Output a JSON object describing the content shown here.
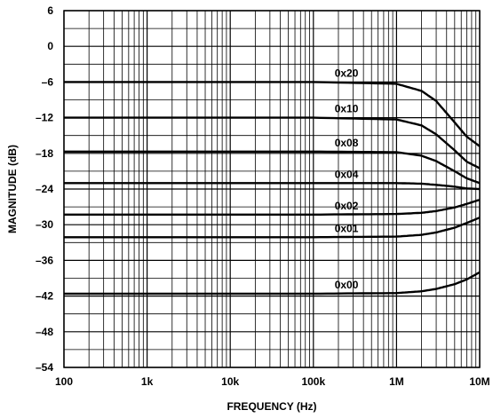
{
  "chart_data": {
    "type": "line",
    "title": "",
    "xlabel": "FREQUENCY (Hz)",
    "ylabel": "MAGNITUDE (dB)",
    "x_scale": "log",
    "xlim": [
      100,
      10000000
    ],
    "ylim": [
      -54,
      6
    ],
    "grid": true,
    "x_ticks": [
      {
        "value": 100,
        "label": "100"
      },
      {
        "value": 1000,
        "label": "1k"
      },
      {
        "value": 10000,
        "label": "10k"
      },
      {
        "value": 100000,
        "label": "100k"
      },
      {
        "value": 1000000,
        "label": "1M"
      },
      {
        "value": 10000000,
        "label": "10M"
      }
    ],
    "y_ticks": [
      {
        "value": 6,
        "label": "6"
      },
      {
        "value": 0,
        "label": "0"
      },
      {
        "value": -6,
        "label": "–6"
      },
      {
        "value": -12,
        "label": "–12"
      },
      {
        "value": -18,
        "label": "–18"
      },
      {
        "value": -24,
        "label": "–24"
      },
      {
        "value": -30,
        "label": "–30"
      },
      {
        "value": -36,
        "label": "–36"
      },
      {
        "value": -42,
        "label": "–42"
      },
      {
        "value": -48,
        "label": "–48"
      },
      {
        "value": -54,
        "label": "–54"
      }
    ],
    "series": [
      {
        "name": "0x20",
        "x": [
          100,
          100000,
          1000000,
          2000000,
          3000000,
          5000000,
          7000000,
          10000000
        ],
        "y": [
          -6.0,
          -6.0,
          -6.3,
          -7.5,
          -9.2,
          -12.8,
          -15.2,
          -16.8
        ]
      },
      {
        "name": "0x10",
        "x": [
          100,
          100000,
          1000000,
          2000000,
          3000000,
          5000000,
          7000000,
          10000000
        ],
        "y": [
          -12.0,
          -12.0,
          -12.3,
          -13.3,
          -14.8,
          -17.5,
          -19.4,
          -20.5
        ]
      },
      {
        "name": "0x08",
        "x": [
          100,
          100000,
          1000000,
          2000000,
          3000000,
          5000000,
          7000000,
          10000000
        ],
        "y": [
          -17.7,
          -17.7,
          -17.8,
          -18.4,
          -19.3,
          -21.0,
          -22.2,
          -23.0
        ]
      },
      {
        "name": "0x04",
        "x": [
          100,
          100000,
          1000000,
          2000000,
          3000000,
          5000000,
          7000000,
          10000000
        ],
        "y": [
          -23.0,
          -23.0,
          -23.0,
          -23.1,
          -23.3,
          -23.6,
          -23.9,
          -24.0
        ]
      },
      {
        "name": "0x02",
        "x": [
          100,
          100000,
          1000000,
          2000000,
          3000000,
          5000000,
          7000000,
          10000000
        ],
        "y": [
          -28.3,
          -28.3,
          -28.2,
          -28.0,
          -27.7,
          -27.1,
          -26.5,
          -25.8
        ]
      },
      {
        "name": "0x01",
        "x": [
          100,
          100000,
          1000000,
          2000000,
          3000000,
          5000000,
          7000000,
          10000000
        ],
        "y": [
          -32.1,
          -32.1,
          -32.0,
          -31.7,
          -31.3,
          -30.5,
          -29.7,
          -28.8
        ]
      },
      {
        "name": "0x00",
        "x": [
          100,
          100000,
          1000000,
          2000000,
          3000000,
          5000000,
          7000000,
          10000000
        ],
        "y": [
          -41.6,
          -41.6,
          -41.5,
          -41.2,
          -40.8,
          -40.0,
          -39.2,
          -38.0
        ]
      }
    ],
    "colors": {
      "line": "#000000",
      "grid": "#000000",
      "background": "#ffffff"
    }
  }
}
